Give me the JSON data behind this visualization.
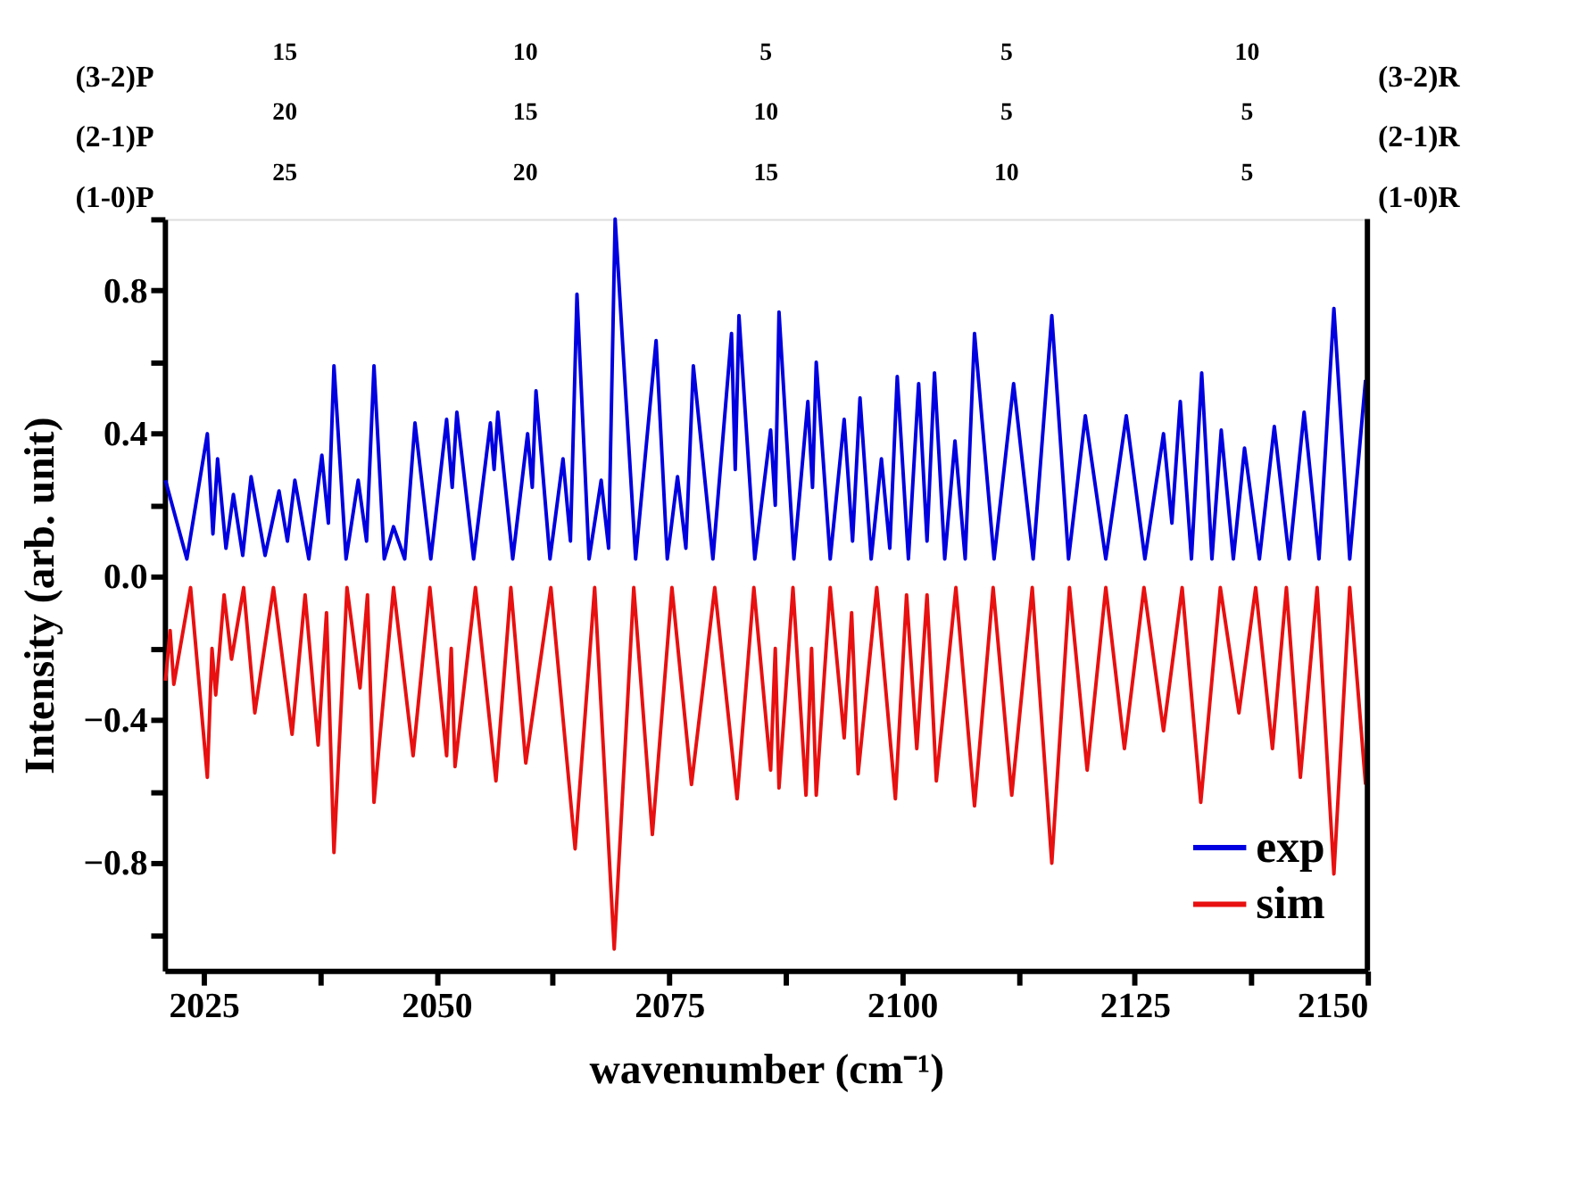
{
  "chart_data": {
    "type": "line",
    "xlabel": "wavenumber (cm⁻¹)",
    "ylabel": "Intensity (arb. unit)",
    "xlim": [
      2020.8,
      2150
    ],
    "xticks": [
      2025,
      {
        "value": 2037.5,
        "label": null
      },
      2050,
      {
        "value": 2062.5,
        "label": null
      },
      2075,
      {
        "value": 2087.5,
        "label": null
      },
      2100,
      {
        "value": 2112.5,
        "label": null
      },
      2125,
      {
        "value": 2137.5,
        "label": null
      },
      2150
    ],
    "ylim": [
      -1.1,
      1.0
    ],
    "yticks": [
      {
        "value": -1.0,
        "label": null
      },
      -0.8,
      {
        "value": -0.6,
        "label": null
      },
      -0.4,
      {
        "value": -0.2,
        "label": null
      },
      {
        "value": 0,
        "label": "0.0"
      },
      {
        "value": 0.2,
        "label": null
      },
      0.4,
      {
        "value": 0.6,
        "label": null
      },
      0.8,
      {
        "value": 1.0,
        "label": null
      }
    ],
    "annotations": [
      "(3-2)P",
      "(3-2)R",
      "15",
      "10",
      "5",
      "5",
      "10",
      "(2-1)P",
      "(2-1)R",
      "20",
      "15",
      "10",
      "5",
      "5",
      "(1-0)P",
      "(1-0)R",
      "25",
      "20",
      "15",
      "10",
      "5"
    ],
    "legend": "bottom right",
    "grid": false,
    "line_style": "solid",
    "series": [
      {
        "name": "exp",
        "color": "#0000e0",
        "x": [
          2020.9,
          2023.2,
          2025.4,
          2026.0,
          2026.5,
          2027.4,
          2028.2,
          2029.2,
          2030.1,
          2031.6,
          2033.1,
          2034.0,
          2034.8,
          2036.3,
          2037.7,
          2038.4,
          2039.0,
          2040.3,
          2041.6,
          2042.5,
          2043.3,
          2044.4,
          2045.4,
          2046.6,
          2047.7,
          2049.4,
          2051.1,
          2051.7,
          2052.2,
          2054.0,
          2055.8,
          2056.2,
          2056.6,
          2058.2,
          2059.8,
          2060.3,
          2060.7,
          2062.2,
          2063.6,
          2064.4,
          2065.1,
          2066.4,
          2067.7,
          2068.5,
          2069.2,
          2071.4,
          2073.6,
          2074.8,
          2075.9,
          2076.8,
          2077.6,
          2079.7,
          2081.7,
          2082.1,
          2082.5,
          2084.2,
          2085.9,
          2086.4,
          2086.8,
          2088.4,
          2089.9,
          2090.4,
          2090.8,
          2092.3,
          2093.8,
          2094.7,
          2095.5,
          2096.7,
          2097.8,
          2098.7,
          2099.5,
          2100.7,
          2101.8,
          2102.7,
          2103.5,
          2104.6,
          2105.7,
          2106.8,
          2107.8,
          2109.9,
          2112.0,
          2114.1,
          2116.1,
          2117.9,
          2119.7,
          2121.9,
          2124.1,
          2126.1,
          2128.1,
          2129.0,
          2129.9,
          2131.1,
          2132.2,
          2133.3,
          2134.3,
          2135.6,
          2136.8,
          2138.4,
          2140.0,
          2141.6,
          2143.2,
          2144.8,
          2146.4,
          2148.1,
          2149.8
        ],
        "values": [
          0.27,
          0.05,
          0.4,
          0.12,
          0.33,
          0.08,
          0.23,
          0.06,
          0.28,
          0.06,
          0.24,
          0.1,
          0.27,
          0.05,
          0.34,
          0.15,
          0.59,
          0.05,
          0.27,
          0.1,
          0.59,
          0.05,
          0.14,
          0.05,
          0.43,
          0.05,
          0.44,
          0.25,
          0.46,
          0.05,
          0.43,
          0.3,
          0.46,
          0.05,
          0.4,
          0.25,
          0.52,
          0.05,
          0.33,
          0.1,
          0.79,
          0.05,
          0.27,
          0.08,
          1.0,
          0.05,
          0.66,
          0.05,
          0.28,
          0.08,
          0.59,
          0.05,
          0.68,
          0.3,
          0.73,
          0.05,
          0.41,
          0.2,
          0.74,
          0.05,
          0.49,
          0.25,
          0.6,
          0.05,
          0.44,
          0.1,
          0.5,
          0.05,
          0.33,
          0.08,
          0.56,
          0.05,
          0.54,
          0.1,
          0.57,
          0.05,
          0.38,
          0.05,
          0.68,
          0.05,
          0.54,
          0.05,
          0.73,
          0.05,
          0.45,
          0.05,
          0.45,
          0.05,
          0.4,
          0.15,
          0.49,
          0.05,
          0.57,
          0.05,
          0.41,
          0.05,
          0.36,
          0.05,
          0.42,
          0.05,
          0.46,
          0.05,
          0.75,
          0.05,
          0.55
        ]
      },
      {
        "name": "sim",
        "color": "#e81010",
        "x": [
          2020.9,
          2021.4,
          2021.8,
          2023.6,
          2025.4,
          2025.9,
          2026.3,
          2027.2,
          2028.0,
          2029.3,
          2030.5,
          2032.5,
          2034.5,
          2035.9,
          2037.3,
          2038.2,
          2039.0,
          2040.4,
          2041.8,
          2042.6,
          2043.3,
          2045.4,
          2047.5,
          2049.3,
          2051.1,
          2051.6,
          2052.0,
          2054.2,
          2056.4,
          2058.0,
          2059.6,
          2062.3,
          2064.9,
          2067.0,
          2069.1,
          2071.2,
          2073.2,
          2075.3,
          2077.4,
          2079.9,
          2082.3,
          2084.1,
          2085.9,
          2086.4,
          2086.8,
          2088.3,
          2089.7,
          2090.3,
          2090.8,
          2092.3,
          2093.8,
          2094.6,
          2095.3,
          2097.3,
          2099.3,
          2100.5,
          2101.6,
          2102.7,
          2103.7,
          2105.8,
          2107.8,
          2109.8,
          2111.8,
          2114.0,
          2116.1,
          2118.0,
          2119.9,
          2121.9,
          2123.9,
          2126.0,
          2128.1,
          2130.1,
          2132.1,
          2134.2,
          2136.2,
          2138.0,
          2139.8,
          2141.3,
          2142.8,
          2144.6,
          2146.4,
          2148.1,
          2149.8
        ],
        "values": [
          -0.29,
          -0.15,
          -0.3,
          -0.03,
          -0.56,
          -0.2,
          -0.33,
          -0.05,
          -0.23,
          -0.03,
          -0.38,
          -0.03,
          -0.44,
          -0.05,
          -0.47,
          -0.1,
          -0.77,
          -0.03,
          -0.31,
          -0.05,
          -0.63,
          -0.03,
          -0.5,
          -0.03,
          -0.5,
          -0.2,
          -0.53,
          -0.03,
          -0.57,
          -0.03,
          -0.52,
          -0.03,
          -0.76,
          -0.03,
          -1.04,
          -0.03,
          -0.72,
          -0.03,
          -0.58,
          -0.03,
          -0.62,
          -0.03,
          -0.54,
          -0.2,
          -0.59,
          -0.03,
          -0.61,
          -0.2,
          -0.61,
          -0.03,
          -0.45,
          -0.1,
          -0.55,
          -0.03,
          -0.62,
          -0.05,
          -0.48,
          -0.05,
          -0.57,
          -0.03,
          -0.64,
          -0.03,
          -0.61,
          -0.03,
          -0.8,
          -0.03,
          -0.54,
          -0.03,
          -0.48,
          -0.03,
          -0.43,
          -0.03,
          -0.63,
          -0.03,
          -0.38,
          -0.03,
          -0.48,
          -0.03,
          -0.56,
          -0.03,
          -0.83,
          -0.03,
          -0.58
        ]
      }
    ]
  }
}
